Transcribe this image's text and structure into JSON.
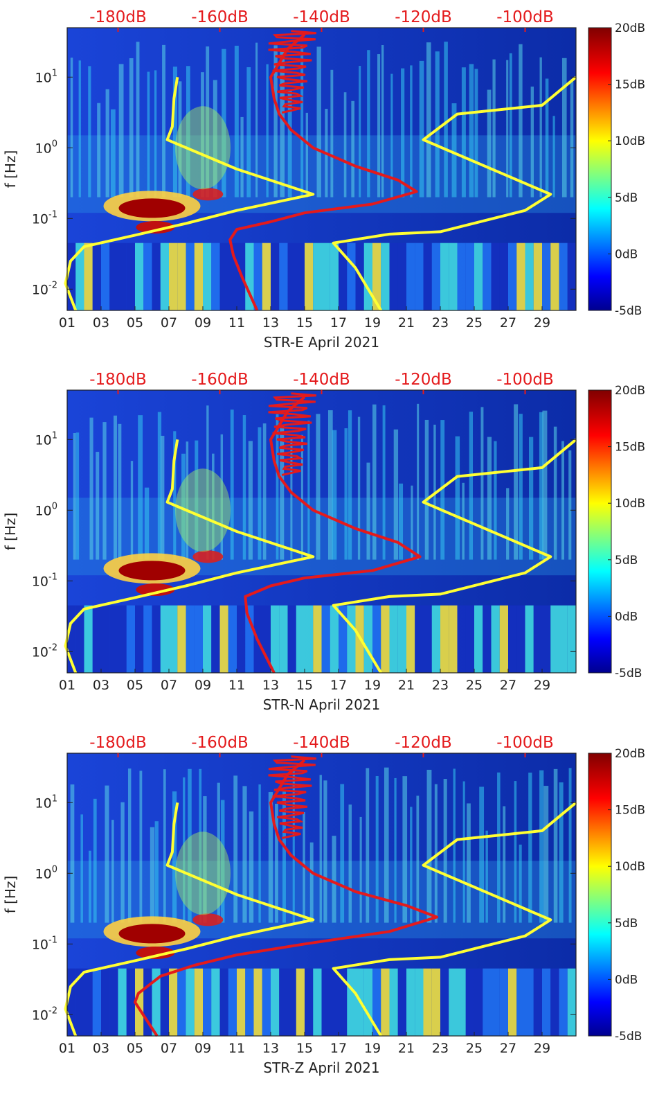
{
  "chart_data": [
    {
      "type": "heatmap",
      "title": "",
      "xlabel": "STR-E April 2021",
      "ylabel": "f [Hz]",
      "x_ticks": [
        "01",
        "03",
        "05",
        "07",
        "09",
        "11",
        "13",
        "15",
        "17",
        "19",
        "21",
        "23",
        "25",
        "27",
        "29"
      ],
      "y_ticks": [
        "10-2",
        "10-1",
        "100",
        "101"
      ],
      "ylim_hz": [
        0.005,
        50
      ],
      "xlim_day": [
        1,
        31
      ],
      "top_axis_labels": [
        "-180dB",
        "-160dB",
        "-140dB",
        "-120dB",
        "-100dB"
      ],
      "colorbar_labels": [
        "20dB",
        "15dB",
        "10dB",
        "5dB",
        "0dB",
        "-5dB"
      ],
      "colorbar_range_db": [
        -5,
        20
      ],
      "series": [
        {
          "name": "yellow-left",
          "color": "#ffff33",
          "points": [
            [
              7.5,
              10
            ],
            [
              7.3,
              5
            ],
            [
              7.2,
              2
            ],
            [
              6.9,
              1.3
            ],
            [
              11,
              0.5
            ],
            [
              15.5,
              0.22
            ],
            [
              11,
              0.13
            ],
            [
              8,
              0.085
            ],
            [
              5,
              0.058
            ],
            [
              2,
              0.04
            ],
            [
              1.2,
              0.025
            ],
            [
              0.9,
              0.012
            ],
            [
              1.5,
              0.005
            ]
          ]
        },
        {
          "name": "yellow-right",
          "color": "#ffff33",
          "points": [
            [
              31,
              10
            ],
            [
              29,
              4
            ],
            [
              24,
              3
            ],
            [
              22,
              1.3
            ],
            [
              29.5,
              0.22
            ],
            [
              28,
              0.13
            ],
            [
              23,
              0.065
            ],
            [
              20,
              0.06
            ],
            [
              16.7,
              0.045
            ],
            [
              18,
              0.02
            ],
            [
              19.5,
              0.005
            ]
          ]
        },
        {
          "name": "red-model",
          "color": "#e41a1c",
          "points": [
            [
              15,
              40
            ],
            [
              14,
              25
            ],
            [
              13,
              10
            ],
            [
              13.2,
              5
            ],
            [
              13.5,
              3
            ],
            [
              14.2,
              1.8
            ],
            [
              15.5,
              1
            ],
            [
              18,
              0.55
            ],
            [
              20.5,
              0.35
            ],
            [
              21.6,
              0.24
            ],
            [
              19,
              0.16
            ],
            [
              15,
              0.12
            ],
            [
              13,
              0.09
            ],
            [
              11,
              0.07
            ],
            [
              10.6,
              0.05
            ],
            [
              10.8,
              0.03
            ],
            [
              11.3,
              0.015
            ],
            [
              12.2,
              0.005
            ]
          ]
        }
      ]
    },
    {
      "type": "heatmap",
      "title": "",
      "xlabel": "STR-N April 2021",
      "ylabel": "f [Hz]",
      "x_ticks": [
        "01",
        "03",
        "05",
        "07",
        "09",
        "11",
        "13",
        "15",
        "17",
        "19",
        "21",
        "23",
        "25",
        "27",
        "29"
      ],
      "y_ticks": [
        "10-2",
        "10-1",
        "100",
        "101"
      ],
      "ylim_hz": [
        0.005,
        50
      ],
      "xlim_day": [
        1,
        31
      ],
      "top_axis_labels": [
        "-180dB",
        "-160dB",
        "-140dB",
        "-120dB",
        "-100dB"
      ],
      "colorbar_labels": [
        "20dB",
        "15dB",
        "10dB",
        "5dB",
        "0dB",
        "-5dB"
      ],
      "colorbar_range_db": [
        -5,
        20
      ],
      "series": [
        {
          "name": "yellow-left",
          "color": "#ffff33",
          "points": [
            [
              7.5,
              10
            ],
            [
              7.3,
              5
            ],
            [
              7.2,
              2
            ],
            [
              6.9,
              1.3
            ],
            [
              11,
              0.5
            ],
            [
              15.5,
              0.22
            ],
            [
              11,
              0.13
            ],
            [
              8,
              0.085
            ],
            [
              5,
              0.058
            ],
            [
              2,
              0.04
            ],
            [
              1.2,
              0.025
            ],
            [
              0.9,
              0.012
            ],
            [
              1.5,
              0.005
            ]
          ]
        },
        {
          "name": "yellow-right",
          "color": "#ffff33",
          "points": [
            [
              31,
              10
            ],
            [
              29,
              4
            ],
            [
              24,
              3
            ],
            [
              22,
              1.3
            ],
            [
              29.5,
              0.22
            ],
            [
              28,
              0.13
            ],
            [
              23,
              0.065
            ],
            [
              20,
              0.06
            ],
            [
              16.7,
              0.045
            ],
            [
              18,
              0.02
            ],
            [
              19.5,
              0.005
            ]
          ]
        },
        {
          "name": "red-model",
          "color": "#e41a1c",
          "points": [
            [
              15,
              40
            ],
            [
              14,
              25
            ],
            [
              13,
              10
            ],
            [
              13.2,
              5
            ],
            [
              13.5,
              3
            ],
            [
              14.2,
              1.8
            ],
            [
              15.5,
              1
            ],
            [
              18,
              0.55
            ],
            [
              20.5,
              0.35
            ],
            [
              21.8,
              0.22
            ],
            [
              19,
              0.14
            ],
            [
              15,
              0.11
            ],
            [
              13,
              0.085
            ],
            [
              11.5,
              0.06
            ],
            [
              11.6,
              0.035
            ],
            [
              12.2,
              0.015
            ],
            [
              13.2,
              0.005
            ]
          ]
        }
      ]
    },
    {
      "type": "heatmap",
      "title": "",
      "xlabel": "STR-Z April 2021",
      "ylabel": "f [Hz]",
      "x_ticks": [
        "01",
        "03",
        "05",
        "07",
        "09",
        "11",
        "13",
        "15",
        "17",
        "19",
        "21",
        "23",
        "25",
        "27",
        "29"
      ],
      "y_ticks": [
        "10-2",
        "10-1",
        "100",
        "101"
      ],
      "ylim_hz": [
        0.005,
        50
      ],
      "xlim_day": [
        1,
        31
      ],
      "top_axis_labels": [
        "-180dB",
        "-160dB",
        "-140dB",
        "-120dB",
        "-100dB"
      ],
      "colorbar_labels": [
        "20dB",
        "15dB",
        "10dB",
        "5dB",
        "0dB",
        "-5dB"
      ],
      "colorbar_range_db": [
        -5,
        20
      ],
      "series": [
        {
          "name": "yellow-left",
          "color": "#ffff33",
          "points": [
            [
              7.5,
              10
            ],
            [
              7.3,
              5
            ],
            [
              7.2,
              2
            ],
            [
              6.9,
              1.3
            ],
            [
              11,
              0.5
            ],
            [
              15.5,
              0.22
            ],
            [
              11,
              0.13
            ],
            [
              8,
              0.085
            ],
            [
              5,
              0.058
            ],
            [
              2,
              0.04
            ],
            [
              1.2,
              0.025
            ],
            [
              0.9,
              0.012
            ],
            [
              1.5,
              0.005
            ]
          ]
        },
        {
          "name": "yellow-right",
          "color": "#ffff33",
          "points": [
            [
              31,
              10
            ],
            [
              29,
              4
            ],
            [
              24,
              3
            ],
            [
              22,
              1.3
            ],
            [
              29.5,
              0.22
            ],
            [
              28,
              0.13
            ],
            [
              23,
              0.065
            ],
            [
              20,
              0.06
            ],
            [
              16.7,
              0.045
            ],
            [
              18,
              0.02
            ],
            [
              19.5,
              0.005
            ]
          ]
        },
        {
          "name": "red-model",
          "color": "#e41a1c",
          "points": [
            [
              15,
              40
            ],
            [
              14,
              25
            ],
            [
              13,
              10
            ],
            [
              13.2,
              5
            ],
            [
              13.5,
              3
            ],
            [
              14.2,
              1.8
            ],
            [
              15.5,
              1
            ],
            [
              18,
              0.55
            ],
            [
              21,
              0.35
            ],
            [
              22.8,
              0.24
            ],
            [
              20,
              0.15
            ],
            [
              15,
              0.1
            ],
            [
              11,
              0.07
            ],
            [
              8.5,
              0.05
            ],
            [
              6.5,
              0.035
            ],
            [
              5.2,
              0.02
            ],
            [
              5,
              0.015
            ],
            [
              6.3,
              0.005
            ]
          ]
        }
      ]
    }
  ]
}
